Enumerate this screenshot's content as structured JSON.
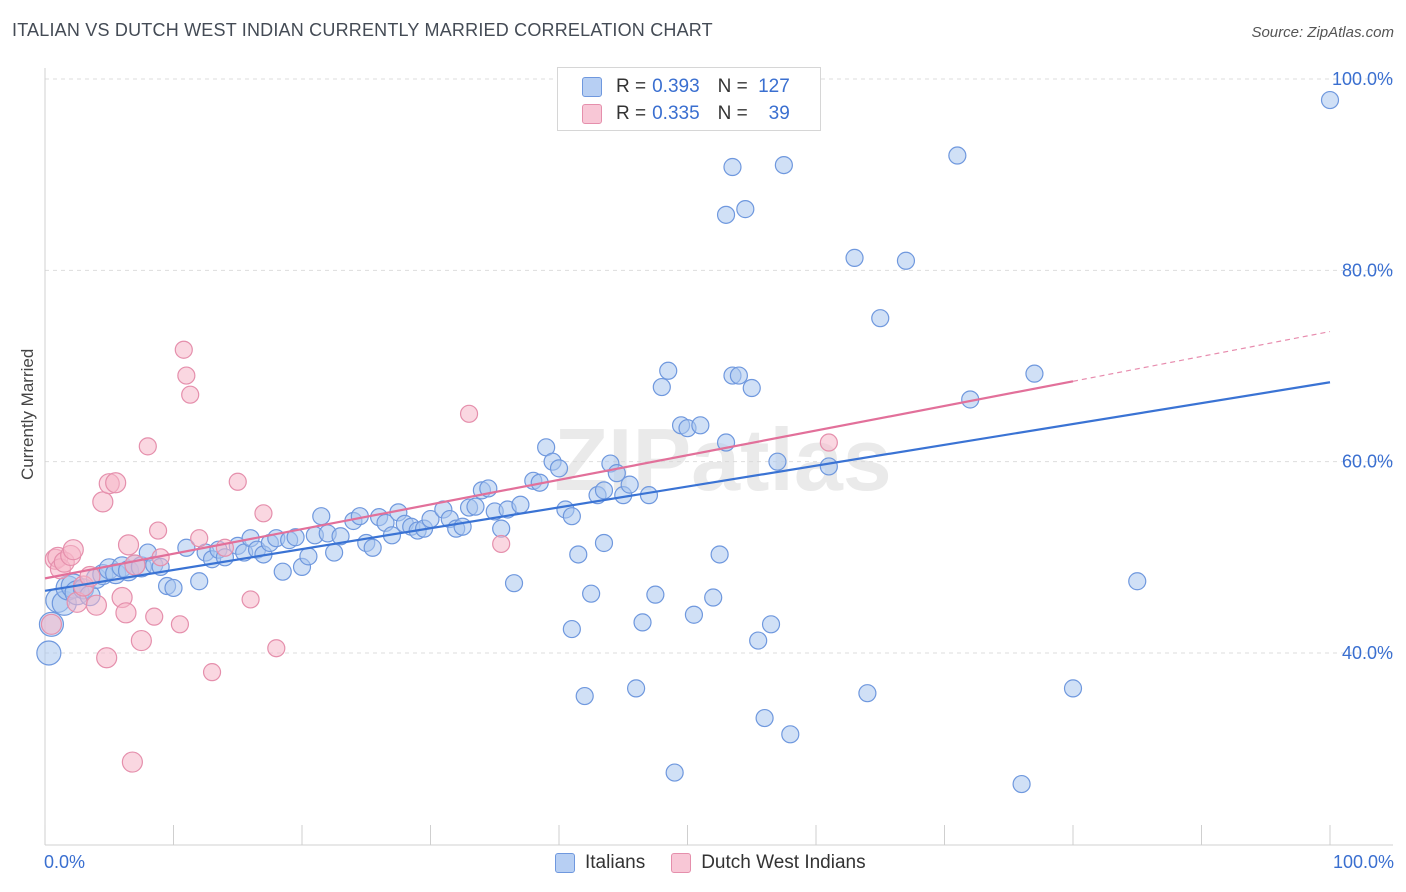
{
  "title": "ITALIAN VS DUTCH WEST INDIAN CURRENTLY MARRIED CORRELATION CHART",
  "source": "Source: ZipAtlas.com",
  "colors": {
    "blue": "#3a73d4",
    "blue_fill": "#a9c6ef",
    "pink": "#e2709a",
    "pink_fill": "#f5b6c9",
    "axis_text": "#3a6fd0",
    "grid": "#dddddd"
  },
  "legend_top": [
    {
      "label": "R =",
      "r": "0.393",
      "n_label": "N =",
      "n": "127",
      "color": "blue"
    },
    {
      "label": "R =",
      "r": "0.335",
      "n_label": "N =",
      "n": "39",
      "color": "pink"
    }
  ],
  "legend_bottom": [
    {
      "name": "Italians",
      "color": "blue"
    },
    {
      "name": "Dutch West Indians",
      "color": "pink"
    }
  ],
  "watermark": "ZIPatlas",
  "chart_data": {
    "type": "scatter",
    "title": "ITALIAN VS DUTCH WEST INDIAN CURRENTLY MARRIED CORRELATION CHART",
    "xlabel": "",
    "ylabel": "Currently Married",
    "xlim": [
      0,
      100
    ],
    "ylim": [
      22,
      100
    ],
    "x_tick_labels": [
      "0.0%",
      "100.0%"
    ],
    "y_ticks": [
      40,
      60,
      80,
      100
    ],
    "y_tick_labels": [
      "40.0%",
      "60.0%",
      "80.0%",
      "100.0%"
    ],
    "grid": true,
    "legend_position": "top-center",
    "series": [
      {
        "name": "Italians",
        "color": "blue",
        "trendline": {
          "x": [
            0,
            100
          ],
          "y": [
            46.5,
            68.3
          ]
        },
        "points": [
          [
            0.3,
            40
          ],
          [
            0.5,
            43
          ],
          [
            1,
            45.5
          ],
          [
            1.5,
            45.2
          ],
          [
            1.8,
            46.8
          ],
          [
            2.2,
            47
          ],
          [
            2.5,
            46.3
          ],
          [
            3,
            46.7
          ],
          [
            3.5,
            46
          ],
          [
            4,
            47.8
          ],
          [
            4.5,
            48.2
          ],
          [
            5,
            48.8
          ],
          [
            5.5,
            48.3
          ],
          [
            6,
            49
          ],
          [
            6.5,
            48.6
          ],
          [
            7,
            49.2
          ],
          [
            7.5,
            49
          ],
          [
            8,
            50.5
          ],
          [
            8.5,
            49.2
          ],
          [
            9,
            49
          ],
          [
            9.5,
            47
          ],
          [
            10,
            46.8
          ],
          [
            11,
            51
          ],
          [
            12,
            47.5
          ],
          [
            12.5,
            50.5
          ],
          [
            13,
            49.8
          ],
          [
            13.5,
            50.8
          ],
          [
            14,
            50
          ],
          [
            15,
            51.2
          ],
          [
            15.5,
            50.5
          ],
          [
            16,
            52
          ],
          [
            16.5,
            50.8
          ],
          [
            17,
            50.3
          ],
          [
            17.5,
            51.5
          ],
          [
            18,
            52
          ],
          [
            18.5,
            48.5
          ],
          [
            19,
            51.8
          ],
          [
            19.5,
            52.1
          ],
          [
            20,
            49
          ],
          [
            20.5,
            50.1
          ],
          [
            21,
            52.3
          ],
          [
            21.5,
            54.3
          ],
          [
            22,
            52.5
          ],
          [
            22.5,
            50.5
          ],
          [
            23,
            52.2
          ],
          [
            24,
            53.8
          ],
          [
            24.5,
            54.3
          ],
          [
            25,
            51.5
          ],
          [
            25.5,
            51
          ],
          [
            26,
            54.2
          ],
          [
            26.5,
            53.6
          ],
          [
            27,
            52.3
          ],
          [
            27.5,
            54.7
          ],
          [
            28,
            53.5
          ],
          [
            28.5,
            53.2
          ],
          [
            29,
            52.8
          ],
          [
            29.5,
            53
          ],
          [
            30,
            54
          ],
          [
            31,
            55
          ],
          [
            31.5,
            54
          ],
          [
            32,
            53
          ],
          [
            32.5,
            53.2
          ],
          [
            33,
            55.2
          ],
          [
            33.5,
            55.3
          ],
          [
            34,
            57
          ],
          [
            34.5,
            57.2
          ],
          [
            35,
            54.8
          ],
          [
            35.5,
            53
          ],
          [
            36,
            55
          ],
          [
            36.5,
            47.3
          ],
          [
            37,
            55.5
          ],
          [
            38,
            58
          ],
          [
            38.5,
            57.8
          ],
          [
            39,
            61.5
          ],
          [
            39.5,
            60
          ],
          [
            40,
            59.3
          ],
          [
            40.5,
            55
          ],
          [
            41,
            54.3
          ],
          [
            41.5,
            50.3
          ],
          [
            42,
            35.5
          ],
          [
            42.5,
            46.2
          ],
          [
            43,
            56.5
          ],
          [
            43.5,
            57
          ],
          [
            44,
            59.8
          ],
          [
            44.5,
            58.8
          ],
          [
            45,
            56.5
          ],
          [
            45.5,
            57.6
          ],
          [
            46,
            36.3
          ],
          [
            46.5,
            43.2
          ],
          [
            47,
            56.5
          ],
          [
            47.5,
            46.1
          ],
          [
            48,
            67.8
          ],
          [
            48.5,
            69.5
          ],
          [
            49,
            27.5
          ],
          [
            49.5,
            63.8
          ],
          [
            50,
            63.5
          ],
          [
            50.5,
            44
          ],
          [
            51,
            63.8
          ],
          [
            52,
            45.8
          ],
          [
            52.5,
            50.3
          ],
          [
            53,
            62
          ],
          [
            53.5,
            69
          ],
          [
            54,
            69
          ],
          [
            54.5,
            86.4
          ],
          [
            55,
            67.7
          ],
          [
            55.5,
            41.3
          ],
          [
            56,
            33.2
          ],
          [
            56.5,
            43
          ],
          [
            57,
            60
          ],
          [
            58,
            31.5
          ],
          [
            61,
            59.5
          ],
          [
            63,
            81.3
          ],
          [
            64,
            35.8
          ],
          [
            65,
            75
          ],
          [
            67,
            81
          ],
          [
            71,
            92
          ],
          [
            72,
            66.5
          ],
          [
            76,
            26.3
          ],
          [
            77,
            69.2
          ],
          [
            80,
            36.3
          ],
          [
            85,
            47.5
          ],
          [
            100,
            97.8
          ],
          [
            53,
            85.8
          ],
          [
            53.5,
            90.8
          ],
          [
            57.5,
            91
          ],
          [
            43.5,
            51.5
          ],
          [
            41,
            42.5
          ]
        ]
      },
      {
        "name": "Dutch West Indians",
        "color": "pink",
        "trendline": {
          "x": [
            0,
            80
          ],
          "y": [
            47.8,
            68.4
          ]
        },
        "trendline_dashed": {
          "x": [
            80,
            100
          ],
          "y": [
            68.4,
            73.6
          ]
        },
        "points": [
          [
            0.5,
            43
          ],
          [
            0.8,
            49.8
          ],
          [
            1,
            50
          ],
          [
            1.2,
            48.8
          ],
          [
            1.5,
            49.5
          ],
          [
            2,
            50.2
          ],
          [
            2.2,
            50.8
          ],
          [
            2.5,
            45.3
          ],
          [
            3,
            47
          ],
          [
            3.5,
            48
          ],
          [
            4,
            45
          ],
          [
            4.5,
            55.8
          ],
          [
            4.8,
            39.5
          ],
          [
            5,
            57.7
          ],
          [
            5.5,
            57.8
          ],
          [
            6,
            45.8
          ],
          [
            6.3,
            44.2
          ],
          [
            6.5,
            51.3
          ],
          [
            6.8,
            28.6
          ],
          [
            7,
            49.2
          ],
          [
            7.5,
            41.3
          ],
          [
            8,
            61.6
          ],
          [
            8.5,
            43.8
          ],
          [
            8.8,
            52.8
          ],
          [
            9,
            50
          ],
          [
            10.5,
            43
          ],
          [
            10.8,
            71.7
          ],
          [
            11,
            69
          ],
          [
            11.3,
            67
          ],
          [
            12,
            52
          ],
          [
            13,
            38
          ],
          [
            14,
            51
          ],
          [
            15,
            57.9
          ],
          [
            16,
            45.6
          ],
          [
            17,
            54.6
          ],
          [
            18,
            40.5
          ],
          [
            33,
            65
          ],
          [
            35.5,
            51.4
          ],
          [
            61,
            62
          ]
        ]
      }
    ]
  }
}
